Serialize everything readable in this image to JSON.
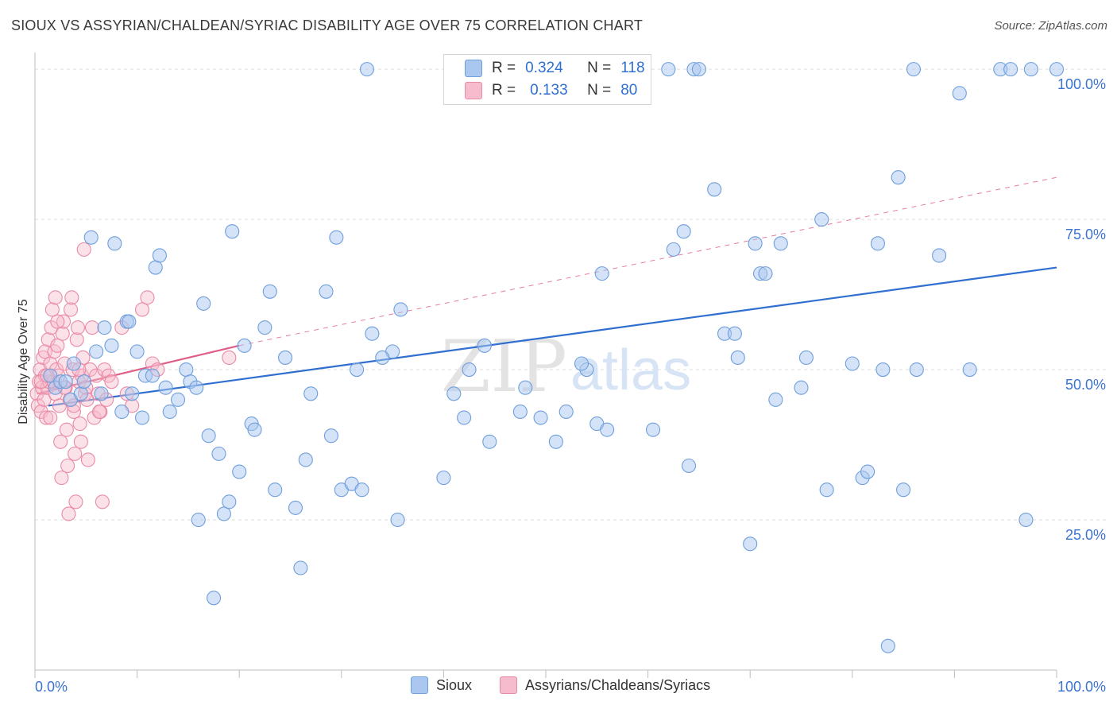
{
  "title": "SIOUX VS ASSYRIAN/CHALDEAN/SYRIAC DISABILITY AGE OVER 75 CORRELATION CHART",
  "source": "Source: ZipAtlas.com",
  "watermark": {
    "zip": "ZIP",
    "atlas": "atlas"
  },
  "legend": {
    "r_label": "R =",
    "n_label": "N =",
    "rows": [
      {
        "r": "0.324",
        "n": "118"
      },
      {
        "r": "0.133",
        "n": "80"
      }
    ]
  },
  "colors": {
    "sioux_fill": "#a9c7ef",
    "sioux_stroke": "#6f9fdc",
    "sioux_line": "#2f6fd0",
    "assyr_fill": "#f6bccd",
    "assyr_stroke": "#ea8aa6",
    "assyr_line": "#e05d86",
    "grid": "#dedede",
    "axis_text": "#3b73cf"
  },
  "chart_data": {
    "type": "scatter",
    "title": "SIOUX VS ASSYRIAN/CHALDEAN/SYRIAC DISABILITY AGE OVER 75 CORRELATION CHART",
    "xlabel": "",
    "ylabel": "Disability Age Over 75",
    "xlim": [
      0,
      100
    ],
    "ylim": [
      0,
      102
    ],
    "x_tick_labels": [
      "0.0%",
      "100.0%"
    ],
    "y_ticks": [
      25,
      50,
      75,
      100
    ],
    "y_tick_labels": [
      "25.0%",
      "50.0%",
      "75.0%",
      "100.0%"
    ],
    "grid": true,
    "series": [
      {
        "name": "Sioux",
        "r": 0.324,
        "n": 118,
        "trend": {
          "x0": 1.3,
          "y0": 44.0,
          "x1": 100,
          "y1": 67.0,
          "style": "solid"
        },
        "points": [
          [
            1.5,
            49
          ],
          [
            2.0,
            47
          ],
          [
            2.5,
            48
          ],
          [
            3.0,
            48
          ],
          [
            3.5,
            45
          ],
          [
            3.8,
            51
          ],
          [
            4.5,
            46
          ],
          [
            4.8,
            48
          ],
          [
            5.5,
            72
          ],
          [
            6.0,
            53
          ],
          [
            6.5,
            46
          ],
          [
            6.8,
            57
          ],
          [
            7.5,
            54
          ],
          [
            7.8,
            71
          ],
          [
            8.5,
            43
          ],
          [
            9.0,
            58
          ],
          [
            9.5,
            46
          ],
          [
            10.0,
            53
          ],
          [
            10.5,
            42
          ],
          [
            10.8,
            49
          ],
          [
            11.5,
            49
          ],
          [
            11.8,
            67
          ],
          [
            12.2,
            69
          ],
          [
            12.8,
            47
          ],
          [
            13.2,
            43
          ],
          [
            14.0,
            45
          ],
          [
            14.8,
            50
          ],
          [
            15.2,
            48
          ],
          [
            15.8,
            47
          ],
          [
            16.5,
            61
          ],
          [
            16.0,
            25
          ],
          [
            17.0,
            39
          ],
          [
            17.5,
            12
          ],
          [
            18.0,
            36
          ],
          [
            18.5,
            26
          ],
          [
            19.0,
            28
          ],
          [
            19.3,
            73
          ],
          [
            20.0,
            33
          ],
          [
            20.5,
            54
          ],
          [
            21.2,
            41
          ],
          [
            21.5,
            40
          ],
          [
            22.5,
            57
          ],
          [
            23.0,
            63
          ],
          [
            23.5,
            30
          ],
          [
            24.5,
            52
          ],
          [
            25.5,
            27
          ],
          [
            26.0,
            17
          ],
          [
            26.5,
            35
          ],
          [
            27.0,
            46
          ],
          [
            28.5,
            63
          ],
          [
            29.0,
            39
          ],
          [
            29.5,
            72
          ],
          [
            30.0,
            30
          ],
          [
            31.0,
            31
          ],
          [
            31.5,
            50
          ],
          [
            32.0,
            30
          ],
          [
            32.5,
            100
          ],
          [
            33.0,
            56
          ],
          [
            35.0,
            53
          ],
          [
            35.5,
            25
          ],
          [
            35.8,
            60
          ],
          [
            40.0,
            32
          ],
          [
            41.0,
            46
          ],
          [
            42.0,
            42
          ],
          [
            42.5,
            50
          ],
          [
            44.0,
            54
          ],
          [
            44.5,
            38
          ],
          [
            47.5,
            43
          ],
          [
            48.0,
            47
          ],
          [
            49.5,
            42
          ],
          [
            51.0,
            38
          ],
          [
            52.0,
            43
          ],
          [
            54.0,
            50
          ],
          [
            55.0,
            41
          ],
          [
            55.5,
            66
          ],
          [
            56.0,
            40
          ],
          [
            60.5,
            40
          ],
          [
            62.5,
            70
          ],
          [
            63.5,
            73
          ],
          [
            64.0,
            34
          ],
          [
            62.0,
            100
          ],
          [
            64.5,
            100
          ],
          [
            65.0,
            100
          ],
          [
            66.5,
            80
          ],
          [
            67.5,
            56
          ],
          [
            68.5,
            56
          ],
          [
            68.8,
            52
          ],
          [
            70.0,
            21
          ],
          [
            70.5,
            71
          ],
          [
            71.0,
            66
          ],
          [
            71.5,
            66
          ],
          [
            73.0,
            71
          ],
          [
            75.0,
            47
          ],
          [
            75.5,
            52
          ],
          [
            77.0,
            75
          ],
          [
            77.5,
            30
          ],
          [
            80.0,
            51
          ],
          [
            81.0,
            32
          ],
          [
            81.5,
            33
          ],
          [
            82.5,
            71
          ],
          [
            83.0,
            50
          ],
          [
            83.5,
            4
          ],
          [
            84.5,
            82
          ],
          [
            85.0,
            30
          ],
          [
            86.0,
            100
          ],
          [
            88.5,
            69
          ],
          [
            90.5,
            96
          ],
          [
            91.5,
            50
          ],
          [
            94.5,
            100
          ],
          [
            95.5,
            100
          ],
          [
            97.0,
            25
          ],
          [
            97.5,
            100
          ],
          [
            100.0,
            100
          ],
          [
            34.0,
            52
          ],
          [
            53.5,
            51
          ],
          [
            9.2,
            58
          ],
          [
            72.5,
            45
          ],
          [
            86.3,
            50
          ]
        ]
      },
      {
        "name": "Assyrians/Chaldeans/Syriacs",
        "r": 0.133,
        "n": 80,
        "trend": {
          "x0": 0.2,
          "y0": 46.0,
          "x1": 20.0,
          "y1": 54.0,
          "style": "solid",
          "extension": {
            "x1": 100,
            "y1": 82.0,
            "style": "dashed"
          }
        },
        "points": [
          [
            0.2,
            46
          ],
          [
            0.3,
            44
          ],
          [
            0.4,
            48
          ],
          [
            0.5,
            50
          ],
          [
            0.6,
            43
          ],
          [
            0.7,
            47
          ],
          [
            0.8,
            52
          ],
          [
            0.9,
            45
          ],
          [
            1.0,
            49
          ],
          [
            1.0,
            53
          ],
          [
            1.1,
            42
          ],
          [
            1.2,
            47
          ],
          [
            1.3,
            55
          ],
          [
            1.4,
            48
          ],
          [
            1.5,
            51
          ],
          [
            1.6,
            57
          ],
          [
            1.7,
            60
          ],
          [
            1.8,
            48
          ],
          [
            1.9,
            53
          ],
          [
            2.0,
            62
          ],
          [
            2.0,
            46
          ],
          [
            2.1,
            50
          ],
          [
            2.2,
            54
          ],
          [
            2.3,
            49
          ],
          [
            2.4,
            44
          ],
          [
            2.5,
            38
          ],
          [
            2.6,
            32
          ],
          [
            2.7,
            56
          ],
          [
            2.8,
            58
          ],
          [
            2.9,
            51
          ],
          [
            3.0,
            47
          ],
          [
            3.1,
            40
          ],
          [
            3.2,
            34
          ],
          [
            3.3,
            26
          ],
          [
            3.4,
            45
          ],
          [
            3.5,
            60
          ],
          [
            3.6,
            62
          ],
          [
            3.7,
            50
          ],
          [
            3.8,
            43
          ],
          [
            3.9,
            36
          ],
          [
            4.0,
            28
          ],
          [
            4.1,
            55
          ],
          [
            4.2,
            57
          ],
          [
            4.3,
            48
          ],
          [
            4.4,
            41
          ],
          [
            4.5,
            38
          ],
          [
            4.6,
            49
          ],
          [
            4.7,
            52
          ],
          [
            4.8,
            70
          ],
          [
            4.9,
            46
          ],
          [
            5.0,
            47
          ],
          [
            5.2,
            35
          ],
          [
            5.4,
            50
          ],
          [
            5.6,
            57
          ],
          [
            5.8,
            42
          ],
          [
            6.0,
            49
          ],
          [
            6.2,
            46
          ],
          [
            6.4,
            43
          ],
          [
            6.6,
            28
          ],
          [
            6.8,
            50
          ],
          [
            7.0,
            45
          ],
          [
            7.2,
            49
          ],
          [
            7.5,
            48
          ],
          [
            8.5,
            57
          ],
          [
            9.0,
            46
          ],
          [
            9.5,
            44
          ],
          [
            10.5,
            60
          ],
          [
            11.0,
            62
          ],
          [
            11.5,
            51
          ],
          [
            12.0,
            50
          ],
          [
            19.0,
            52
          ],
          [
            1.5,
            42
          ],
          [
            2.2,
            58
          ],
          [
            3.8,
            44
          ],
          [
            0.6,
            48
          ],
          [
            1.2,
            49
          ],
          [
            2.9,
            47
          ],
          [
            4.3,
            50
          ],
          [
            5.1,
            45
          ],
          [
            6.3,
            43
          ]
        ]
      }
    ]
  },
  "bottom_legend": [
    "Sioux",
    "Assyrians/Chaldeans/Syriacs"
  ]
}
